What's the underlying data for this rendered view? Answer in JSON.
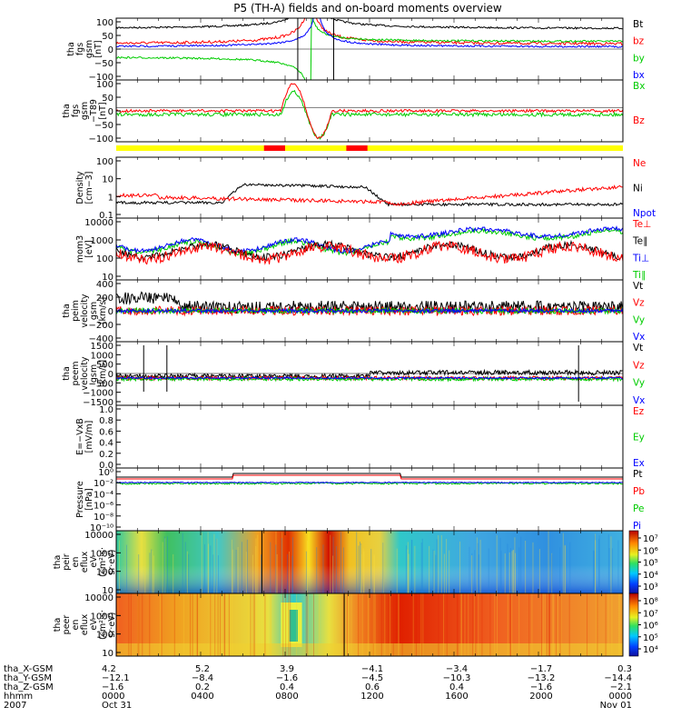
{
  "title": "P5 (TH-A) fields and on-board moments overview",
  "chart_data": [
    {
      "type": "line",
      "ylabel": [
        "tha",
        "fgs",
        "gsm",
        "[nT]"
      ],
      "yticks": [
        "100",
        "50",
        "0",
        "−50",
        "−100"
      ],
      "ylim": [
        -100,
        100
      ],
      "legend": [
        {
          "label": "Bt",
          "color": "#000000"
        },
        {
          "label": "bz",
          "color": "#ff0000"
        },
        {
          "label": "by",
          "color": "#00cc00"
        },
        {
          "label": "bx",
          "color": "#0000ff"
        }
      ]
    },
    {
      "type": "line",
      "ylabel": [
        "tha",
        "fgs",
        "gsm",
        "−T89",
        "[nT]"
      ],
      "yticks": [
        "100",
        "50",
        "0",
        "−50",
        "−100"
      ],
      "ylim": [
        -125,
        100
      ],
      "legend": [
        {
          "label": "Bx",
          "color": "#00cc00"
        },
        {
          "label": "Bz",
          "color": "#ff0000"
        }
      ],
      "mode_bar_colors": {
        "slow": "#ffff00",
        "fast": "#ff0000"
      },
      "fast_intervals_hours": [
        [
          7.0,
          8.0
        ],
        [
          10.9,
          11.9
        ]
      ]
    },
    {
      "type": "line",
      "scale": "log",
      "ylabel": [
        "Density",
        "[cm−3]"
      ],
      "yticks": [
        "100",
        "10",
        "1",
        "0.1"
      ],
      "legend": [
        {
          "label": "Ne",
          "color": "#ff0000"
        },
        {
          "label": "Ni",
          "color": "#000000"
        },
        {
          "label": "Npot",
          "color": "#0000ff"
        }
      ]
    },
    {
      "type": "line",
      "scale": "log",
      "ylabel": [
        "mom3",
        "[eV]"
      ],
      "yticks": [
        "10000",
        "1000",
        "100",
        "10"
      ],
      "legend": [
        {
          "label": "Te⊥",
          "color": "#ff0000"
        },
        {
          "label": "Te∥",
          "color": "#000000"
        },
        {
          "label": "Ti⊥",
          "color": "#0000ff"
        },
        {
          "label": "Ti∥",
          "color": "#00cc00"
        }
      ]
    },
    {
      "type": "line",
      "ylabel": [
        "tha",
        "peim",
        "velocity",
        "gsm",
        "[km/s]"
      ],
      "yticks": [
        "400",
        "200",
        "0",
        "−200",
        "−400"
      ],
      "ylim": [
        -400,
        400
      ],
      "legend": [
        {
          "label": "Vt",
          "color": "#000000"
        },
        {
          "label": "Vz",
          "color": "#ff0000"
        },
        {
          "label": "Vy",
          "color": "#00cc00"
        },
        {
          "label": "Vx",
          "color": "#0000ff"
        }
      ]
    },
    {
      "type": "line",
      "ylabel": [
        "tha",
        "peem",
        "velocity",
        "gsm",
        "[km/s]"
      ],
      "yticks": [
        "1500",
        "1000",
        "500",
        "0",
        "−500",
        "−1000",
        "−1500"
      ],
      "ylim": [
        -1500,
        1500
      ],
      "legend": [
        {
          "label": "Vt",
          "color": "#000000"
        },
        {
          "label": "Vz",
          "color": "#ff0000"
        },
        {
          "label": "Vy",
          "color": "#00cc00"
        },
        {
          "label": "Vx",
          "color": "#0000ff"
        }
      ]
    },
    {
      "type": "line",
      "ylabel": [
        "E=−VxB",
        "[mV/m]"
      ],
      "yticks": [
        "1.0",
        "0.8",
        "0.6",
        "0.4",
        "0.2",
        "0.0"
      ],
      "ylim": [
        0,
        1
      ],
      "legend": [
        {
          "label": "Ez",
          "color": "#ff0000"
        },
        {
          "label": "Ey",
          "color": "#00cc00"
        },
        {
          "label": "Ex",
          "color": "#0000ff"
        }
      ]
    },
    {
      "type": "line",
      "scale": "log",
      "ylabel": [
        "Pressure",
        "[nPa]"
      ],
      "yticks": [
        "10⁰",
        "10⁻²",
        "10⁻⁴",
        "10⁻⁶",
        "10⁻⁸",
        "10⁻¹⁰"
      ],
      "legend": [
        {
          "label": "Pt",
          "color": "#000000"
        },
        {
          "label": "Pb",
          "color": "#ff0000"
        },
        {
          "label": "Pe",
          "color": "#00cc00"
        },
        {
          "label": "Pi",
          "color": "#0000ff"
        }
      ]
    },
    {
      "type": "heatmap",
      "ylabel": [
        "tha",
        "peir",
        "en",
        "eflux",
        "eV",
        "(cm²·s·",
        "sr·eV)"
      ],
      "yticks": [
        "10000",
        "1000",
        "100",
        "10"
      ],
      "colorbar_ticks": [
        "10⁷",
        "10⁶",
        "10⁵",
        "10⁴",
        "10³"
      ]
    },
    {
      "type": "heatmap",
      "ylabel": [
        "tha",
        "peer",
        "en",
        "eflux",
        "eV",
        "(cm²·s·",
        "sr·eV)"
      ],
      "yticks": [
        "10000",
        "1000",
        "100",
        "10"
      ],
      "colorbar_ticks": [
        "10⁸",
        "10⁷",
        "10⁶",
        "10⁵",
        "10⁴"
      ]
    }
  ],
  "x_axis": {
    "row_labels": [
      "tha_X-GSM",
      "tha_Y-GSM",
      "tha_Z-GSM",
      "hhmm",
      "2007"
    ],
    "columns": [
      [
        "4.2",
        "−12.1",
        "−1.6",
        "0000",
        "Oct 31"
      ],
      [
        "5.2",
        "−8.4",
        "0.2",
        "0400",
        ""
      ],
      [
        "3.9",
        "−1.6",
        "0.4",
        "0800",
        ""
      ],
      [
        "−4.1",
        "−4.5",
        "0.6",
        "1200",
        ""
      ],
      [
        "−3.4",
        "−10.3",
        "0.4",
        "1600",
        ""
      ],
      [
        "−1.7",
        "−13.2",
        "−1.6",
        "2000",
        ""
      ],
      [
        "0.3",
        "−14.4",
        "−2.1",
        "0000",
        "Nov 01"
      ]
    ]
  }
}
